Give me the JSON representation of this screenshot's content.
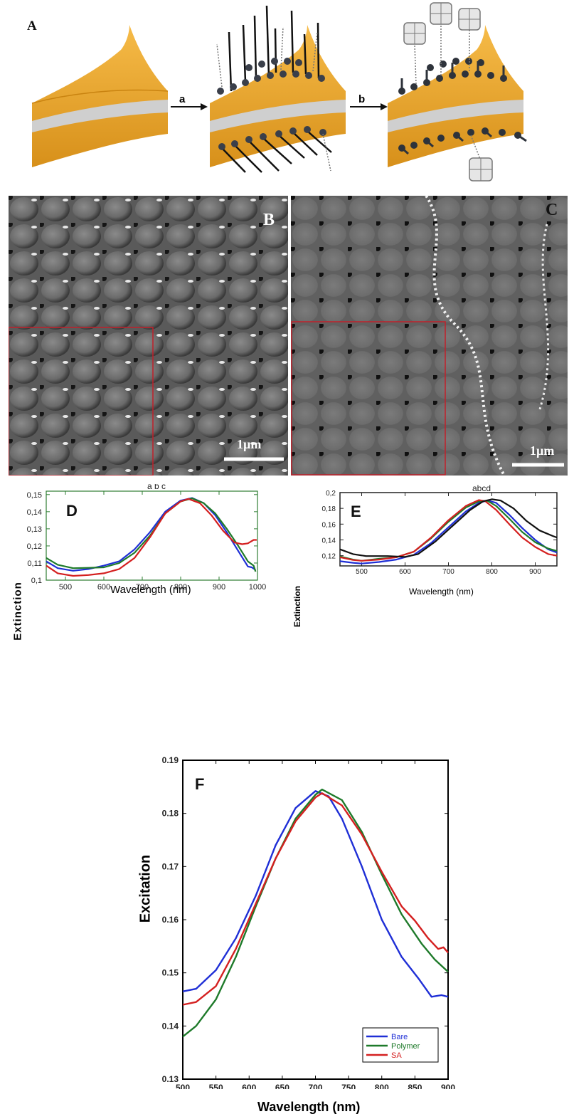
{
  "panel_labels": {
    "A": "A",
    "B": "B",
    "C": "C",
    "D": "D",
    "E": "E",
    "F": "F"
  },
  "schematic": {
    "step_a": "a",
    "step_b": "b",
    "colors": {
      "gold": "#f0a830",
      "gold_dark": "#c98310",
      "silver": "#c8c8c8",
      "molecule": "#3a3f4a"
    }
  },
  "afm": {
    "scale_bar_B": "1µm",
    "scale_bar_C": "1µm",
    "inset_border_color": "#c0202a"
  },
  "chart_data": [
    {
      "id": "D",
      "type": "line",
      "title": "",
      "peak_letters": "a b c",
      "xlabel": "Wavelength (nm)",
      "ylabel": "Extinction",
      "xlim": [
        450,
        1000
      ],
      "ylim": [
        0.1,
        0.152
      ],
      "xticks": [
        500,
        600,
        700,
        800,
        900,
        1000
      ],
      "xtick_labels": [
        "500",
        "600",
        "700",
        "800",
        "900",
        "1000"
      ],
      "yticks": [
        0.1,
        0.11,
        0.12,
        0.13,
        0.14,
        0.15
      ],
      "ytick_labels": [
        "0,1",
        "0,11",
        "0,12",
        "0,13",
        "0,14",
        "0,15"
      ],
      "axis_color": "#2e7d32",
      "series": [
        {
          "color": "#1f2fd6",
          "points": [
            [
              450,
              0.111
            ],
            [
              480,
              0.107
            ],
            [
              520,
              0.1055
            ],
            [
              560,
              0.1065
            ],
            [
              600,
              0.1085
            ],
            [
              640,
              0.111
            ],
            [
              680,
              0.118
            ],
            [
              720,
              0.128
            ],
            [
              760,
              0.14
            ],
            [
              800,
              0.1465
            ],
            [
              830,
              0.148
            ],
            [
              860,
              0.145
            ],
            [
              890,
              0.138
            ],
            [
              920,
              0.128
            ],
            [
              950,
              0.117
            ],
            [
              975,
              0.108
            ],
            [
              985,
              0.1075
            ],
            [
              995,
              0.106
            ]
          ]
        },
        {
          "color": "#1e7a2a",
          "points": [
            [
              450,
              0.113
            ],
            [
              480,
              0.109
            ],
            [
              520,
              0.107
            ],
            [
              560,
              0.1072
            ],
            [
              600,
              0.1075
            ],
            [
              640,
              0.11
            ],
            [
              680,
              0.116
            ],
            [
              720,
              0.126
            ],
            [
              760,
              0.139
            ],
            [
              800,
              0.146
            ],
            [
              830,
              0.1478
            ],
            [
              860,
              0.145
            ],
            [
              890,
              0.139
            ],
            [
              920,
              0.13
            ],
            [
              950,
              0.12
            ],
            [
              975,
              0.111
            ],
            [
              990,
              0.1085
            ],
            [
              995,
              0.105
            ]
          ]
        },
        {
          "color": "#d42020",
          "points": [
            [
              450,
              0.1085
            ],
            [
              480,
              0.104
            ],
            [
              520,
              0.1025
            ],
            [
              560,
              0.103
            ],
            [
              600,
              0.104
            ],
            [
              640,
              0.1065
            ],
            [
              680,
              0.113
            ],
            [
              720,
              0.125
            ],
            [
              760,
              0.139
            ],
            [
              800,
              0.146
            ],
            [
              820,
              0.1475
            ],
            [
              850,
              0.145
            ],
            [
              880,
              0.138
            ],
            [
              910,
              0.129
            ],
            [
              940,
              0.122
            ],
            [
              960,
              0.121
            ],
            [
              975,
              0.1215
            ],
            [
              990,
              0.1235
            ],
            [
              998,
              0.1235
            ]
          ]
        }
      ]
    },
    {
      "id": "E",
      "type": "line",
      "title": "",
      "peak_letters": "abcd",
      "xlabel": "Wavelength (nm)",
      "ylabel": "Extinction",
      "xlim": [
        450,
        950
      ],
      "ylim": [
        0.107,
        0.2
      ],
      "xticks": [
        500,
        600,
        700,
        800,
        900
      ],
      "xtick_labels": [
        "500",
        "600",
        "700",
        "800",
        "900"
      ],
      "yticks": [
        0.12,
        0.14,
        0.16,
        0.18,
        0.2
      ],
      "ytick_labels": [
        "0,12",
        "0,14",
        "0,16",
        "0,18",
        "0,2"
      ],
      "axis_color": "#222222",
      "series": [
        {
          "color": "#1f2fd6",
          "points": [
            [
              450,
              0.113
            ],
            [
              480,
              0.111
            ],
            [
              500,
              0.11
            ],
            [
              540,
              0.112
            ],
            [
              580,
              0.115
            ],
            [
              620,
              0.121
            ],
            [
              660,
              0.136
            ],
            [
              700,
              0.156
            ],
            [
              740,
              0.176
            ],
            [
              770,
              0.187
            ],
            [
              790,
              0.19
            ],
            [
              810,
              0.187
            ],
            [
              840,
              0.172
            ],
            [
              870,
              0.155
            ],
            [
              900,
              0.14
            ],
            [
              930,
              0.128
            ],
            [
              950,
              0.124
            ]
          ]
        },
        {
          "color": "#1e7a2a",
          "points": [
            [
              450,
              0.119
            ],
            [
              480,
              0.115
            ],
            [
              500,
              0.1135
            ],
            [
              540,
              0.116
            ],
            [
              580,
              0.118
            ],
            [
              620,
              0.125
            ],
            [
              660,
              0.142
            ],
            [
              700,
              0.163
            ],
            [
              740,
              0.181
            ],
            [
              770,
              0.189
            ],
            [
              790,
              0.1895
            ],
            [
              810,
              0.183
            ],
            [
              840,
              0.167
            ],
            [
              870,
              0.15
            ],
            [
              900,
              0.137
            ],
            [
              930,
              0.129
            ],
            [
              950,
              0.126
            ]
          ]
        },
        {
          "color": "#d42020",
          "points": [
            [
              450,
              0.118
            ],
            [
              480,
              0.1145
            ],
            [
              500,
              0.1135
            ],
            [
              540,
              0.115
            ],
            [
              580,
              0.118
            ],
            [
              620,
              0.125
            ],
            [
              660,
              0.143
            ],
            [
              700,
              0.165
            ],
            [
              740,
              0.183
            ],
            [
              770,
              0.1905
            ],
            [
              785,
              0.189
            ],
            [
              810,
              0.178
            ],
            [
              840,
              0.16
            ],
            [
              870,
              0.143
            ],
            [
              900,
              0.131
            ],
            [
              930,
              0.122
            ],
            [
              950,
              0.12
            ]
          ]
        },
        {
          "color": "#111111",
          "points": [
            [
              450,
              0.128
            ],
            [
              480,
              0.122
            ],
            [
              510,
              0.1195
            ],
            [
              560,
              0.1195
            ],
            [
              600,
              0.1185
            ],
            [
              630,
              0.122
            ],
            [
              670,
              0.138
            ],
            [
              710,
              0.158
            ],
            [
              750,
              0.178
            ],
            [
              780,
              0.189
            ],
            [
              800,
              0.1915
            ],
            [
              820,
              0.19
            ],
            [
              850,
              0.18
            ],
            [
              880,
              0.164
            ],
            [
              910,
              0.152
            ],
            [
              940,
              0.145
            ],
            [
              950,
              0.143
            ]
          ]
        }
      ]
    },
    {
      "id": "F",
      "type": "line",
      "title": "",
      "xlabel": "Wavelength (nm)",
      "ylabel": "Excitation",
      "xlim": [
        500,
        900
      ],
      "ylim": [
        0.13,
        0.19
      ],
      "xticks": [
        500,
        550,
        600,
        650,
        700,
        750,
        800,
        850,
        900
      ],
      "xtick_labels": [
        "500",
        "550",
        "600",
        "650",
        "700",
        "750",
        "800",
        "850",
        "900"
      ],
      "yticks": [
        0.13,
        0.14,
        0.15,
        0.16,
        0.17,
        0.18,
        0.19
      ],
      "ytick_labels": [
        "0.13",
        "0.14",
        "0.15",
        "0.16",
        "0.17",
        "0.18",
        "0.19"
      ],
      "axis_color": "#000000",
      "legend_position": "bottom-right",
      "series": [
        {
          "name": "Bare",
          "color": "#1f2fd6",
          "points": [
            [
              500,
              0.1465
            ],
            [
              520,
              0.147
            ],
            [
              550,
              0.1505
            ],
            [
              580,
              0.1565
            ],
            [
              610,
              0.1645
            ],
            [
              640,
              0.174
            ],
            [
              670,
              0.181
            ],
            [
              700,
              0.1842
            ],
            [
              720,
              0.1832
            ],
            [
              740,
              0.179
            ],
            [
              770,
              0.17
            ],
            [
              800,
              0.16
            ],
            [
              830,
              0.153
            ],
            [
              855,
              0.149
            ],
            [
              875,
              0.1455
            ],
            [
              890,
              0.1458
            ],
            [
              900,
              0.1455
            ]
          ]
        },
        {
          "name": "Polymer",
          "color": "#1e7a2a",
          "points": [
            [
              500,
              0.138
            ],
            [
              520,
              0.14
            ],
            [
              550,
              0.145
            ],
            [
              580,
              0.153
            ],
            [
              610,
              0.1625
            ],
            [
              640,
              0.1715
            ],
            [
              670,
              0.179
            ],
            [
              700,
              0.1835
            ],
            [
              710,
              0.1845
            ],
            [
              740,
              0.1825
            ],
            [
              770,
              0.1765
            ],
            [
              800,
              0.1685
            ],
            [
              830,
              0.161
            ],
            [
              860,
              0.1555
            ],
            [
              880,
              0.1525
            ],
            [
              900,
              0.1502
            ]
          ]
        },
        {
          "name": "SA",
          "color": "#d42020",
          "points": [
            [
              500,
              0.144
            ],
            [
              520,
              0.1445
            ],
            [
              550,
              0.1475
            ],
            [
              580,
              0.1545
            ],
            [
              610,
              0.163
            ],
            [
              640,
              0.1715
            ],
            [
              670,
              0.1785
            ],
            [
              700,
              0.183
            ],
            [
              710,
              0.1838
            ],
            [
              740,
              0.1815
            ],
            [
              770,
              0.176
            ],
            [
              800,
              0.169
            ],
            [
              830,
              0.1625
            ],
            [
              850,
              0.1598
            ],
            [
              870,
              0.1565
            ],
            [
              885,
              0.1545
            ],
            [
              893,
              0.1548
            ],
            [
              900,
              0.1538
            ]
          ]
        }
      ]
    }
  ]
}
